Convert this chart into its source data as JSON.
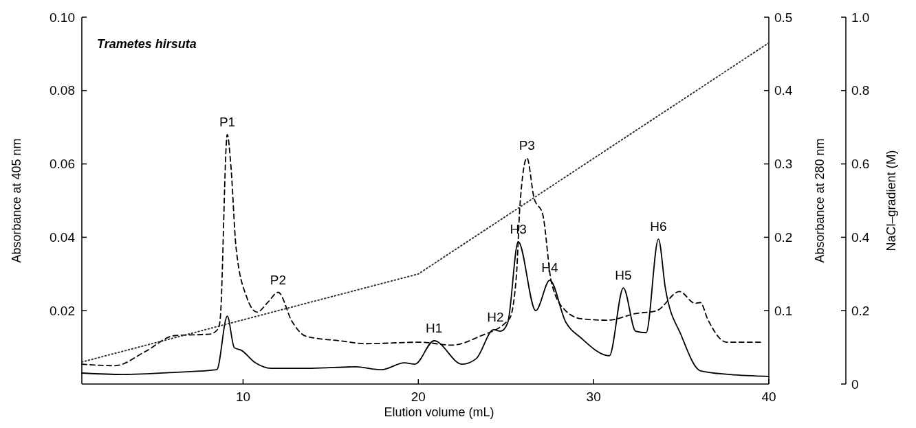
{
  "chart_data": {
    "type": "line",
    "xlabel": "Elution volume (mL)",
    "ylabel": "Absorbance at 405 nm",
    "y2label": "Absorbance at 280 nm",
    "y3label": "NaCl–gradient (M)",
    "xlim": [
      0.8,
      40
    ],
    "xticks": [
      10,
      20,
      30,
      40
    ],
    "ylim": [
      0,
      0.1
    ],
    "yticks": [
      0.02,
      0.04,
      0.06,
      0.08,
      {
        "value": 0.1,
        "label": "0.10"
      }
    ],
    "y2lim": [
      0,
      0.5
    ],
    "y2ticks": [
      0.1,
      0.2,
      0.3,
      0.4,
      0.5
    ],
    "y3lim": [
      0,
      1
    ],
    "y3ticks": [
      0,
      0.2,
      0.4,
      0.6,
      0.8,
      {
        "value": 1,
        "label": "1.0"
      }
    ],
    "grid": false,
    "marker": "none",
    "series": [
      {
        "color": "#000000",
        "line_style": "solid",
        "x": [
          0.8,
          3.15,
          6.2,
          8.5,
          9.1,
          9.5,
          9.9,
          10.7,
          11.6,
          13.9,
          16.4,
          17.9,
          19.2,
          19.8,
          20.9,
          22.5,
          23.3,
          24.3,
          24.7,
          25.1,
          25.7,
          26.7,
          27.5,
          28.4,
          29.3,
          30.9,
          31.7,
          32.4,
          33.0,
          33.7,
          34.1,
          35.0,
          36.1,
          37.8,
          40.0
        ],
        "values": [
          0.003,
          0.0026,
          0.0032,
          0.0039,
          0.0185,
          0.0099,
          0.0092,
          0.0058,
          0.0043,
          0.0043,
          0.0047,
          0.0039,
          0.0058,
          0.0054,
          0.0118,
          0.0054,
          0.0069,
          0.0148,
          0.0144,
          0.0167,
          0.0388,
          0.02,
          0.0283,
          0.017,
          0.0125,
          0.0077,
          0.0262,
          0.0144,
          0.014,
          0.0395,
          0.026,
          0.0133,
          0.0036,
          0.0026,
          0.0021
        ]
      },
      {
        "color": "#000000",
        "line_style": "dashed",
        "axis": "y2",
        "x": [
          0.8,
          2.7,
          4.4,
          6.1,
          8.1,
          8.6,
          8.7,
          9.1,
          9.3,
          9.6,
          10.2,
          10.8,
          11.4,
          12.0,
          12.8,
          13.6,
          15.5,
          17.0,
          20.1,
          21.9,
          23.5,
          25.2,
          25.6,
          25.8,
          26.2,
          26.6,
          27.1,
          27.6,
          28.4,
          29.3,
          30.8,
          32.4,
          33.6,
          34.9,
          35.8,
          36.1,
          36.5,
          37.6,
          39.6
        ],
        "values": [
          0.027,
          0.025,
          0.044,
          0.066,
          0.068,
          0.076,
          0.09,
          0.34,
          0.299,
          0.186,
          0.119,
          0.098,
          0.111,
          0.125,
          0.085,
          0.065,
          0.059,
          0.055,
          0.057,
          0.053,
          0.065,
          0.089,
          0.149,
          0.244,
          0.308,
          0.254,
          0.231,
          0.138,
          0.1,
          0.089,
          0.087,
          0.096,
          0.1,
          0.126,
          0.11,
          0.111,
          0.089,
          0.057,
          0.057
        ]
      },
      {
        "color": "#333333",
        "line_style": "dotted",
        "axis": "y3",
        "x": [
          0.8,
          20,
          40
        ],
        "values": [
          0.06,
          0.3,
          0.93
        ]
      }
    ],
    "annotations": [
      "Trametes hirsuta",
      {
        "text": "P1",
        "x": 9.1,
        "y": 0.068
      },
      {
        "text": "P2",
        "x": 12.0,
        "y": 0.025
      },
      {
        "text": "P3",
        "x": 26.2,
        "y": 0.0616
      },
      {
        "text": "H1",
        "x": 20.9,
        "y": 0.0118
      },
      {
        "text": "H2",
        "x": 24.4,
        "y": 0.0148
      },
      {
        "text": "H3",
        "x": 25.7,
        "y": 0.0388
      },
      {
        "text": "H4",
        "x": 27.5,
        "y": 0.0283
      },
      {
        "text": "H5",
        "x": 31.7,
        "y": 0.0262
      },
      {
        "text": "H6",
        "x": 33.7,
        "y": 0.0395
      }
    ]
  }
}
